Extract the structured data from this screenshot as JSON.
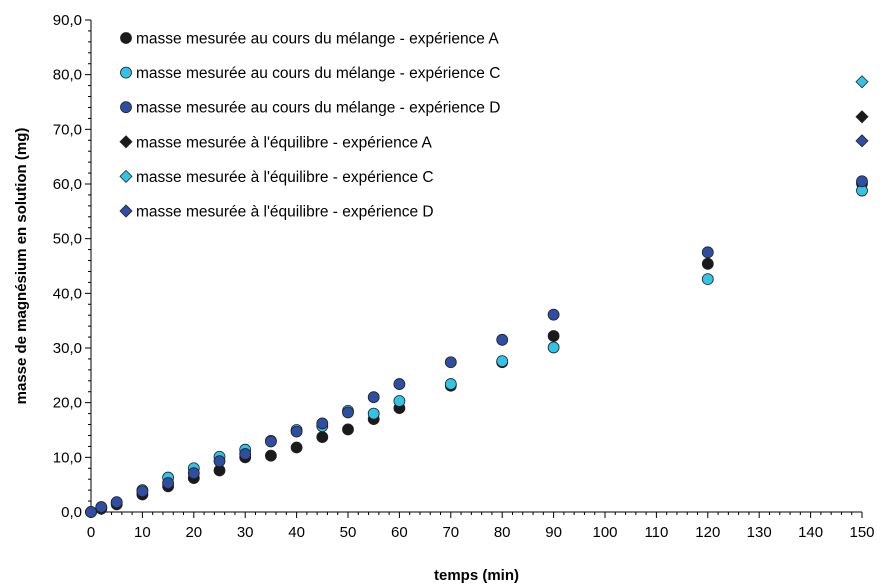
{
  "chart_data": {
    "type": "scatter",
    "title": "",
    "xlabel": "temps (min)",
    "ylabel": "masse de magnésium en solution (mg)",
    "xlim": [
      0,
      150
    ],
    "ylim": [
      0,
      90
    ],
    "x_ticks": [
      "0",
      "10",
      "20",
      "30",
      "40",
      "50",
      "60",
      "70",
      "80",
      "90",
      "100",
      "110",
      "120",
      "130",
      "140",
      "150"
    ],
    "y_ticks": [
      "0,0",
      "10,0",
      "20,0",
      "30,0",
      "40,0",
      "50,0",
      "60,0",
      "70,0",
      "80,0",
      "90,0"
    ],
    "grid": false,
    "legend_position": "top-left",
    "series": [
      {
        "name": "masse mesurée au cours du mélange - expérience A",
        "marker": "circle",
        "color": "#1a1a1a",
        "points": [
          [
            0,
            0
          ],
          [
            2,
            0.6
          ],
          [
            5,
            1.4
          ],
          [
            10,
            3.2
          ],
          [
            15,
            4.7
          ],
          [
            20,
            6.2
          ],
          [
            25,
            7.6
          ],
          [
            30,
            10
          ],
          [
            35,
            10.3
          ],
          [
            40,
            11.8
          ],
          [
            45,
            13.7
          ],
          [
            50,
            15.1
          ],
          [
            55,
            17
          ],
          [
            60,
            19
          ],
          [
            70,
            23.1
          ],
          [
            80,
            27.4
          ],
          [
            90,
            32.2
          ],
          [
            120,
            45.4
          ],
          [
            150,
            60.1
          ]
        ]
      },
      {
        "name": "masse mesurée au cours du mélange - expérience C",
        "marker": "circle",
        "color": "#33c3e6",
        "points": [
          [
            0,
            0
          ],
          [
            2,
            0.8
          ],
          [
            5,
            1.7
          ],
          [
            10,
            4
          ],
          [
            15,
            6.3
          ],
          [
            20,
            8
          ],
          [
            25,
            10.1
          ],
          [
            30,
            11.4
          ],
          [
            35,
            13
          ],
          [
            40,
            15
          ],
          [
            45,
            15.7
          ],
          [
            50,
            18.5
          ],
          [
            55,
            18
          ],
          [
            60,
            20.3
          ],
          [
            70,
            23.4
          ],
          [
            80,
            27.6
          ],
          [
            90,
            30.1
          ],
          [
            120,
            42.6
          ],
          [
            150,
            58.8
          ]
        ]
      },
      {
        "name": "masse mesurée au cours du mélange - expérience D",
        "marker": "circle",
        "color": "#2e4ea3",
        "points": [
          [
            0,
            0
          ],
          [
            2,
            0.9
          ],
          [
            5,
            1.8
          ],
          [
            10,
            3.8
          ],
          [
            15,
            5.3
          ],
          [
            20,
            7.1
          ],
          [
            25,
            9.3
          ],
          [
            30,
            10.6
          ],
          [
            35,
            12.9
          ],
          [
            40,
            14.7
          ],
          [
            45,
            16.2
          ],
          [
            50,
            18.2
          ],
          [
            55,
            21
          ],
          [
            60,
            23.4
          ],
          [
            70,
            27.4
          ],
          [
            80,
            31.5
          ],
          [
            90,
            36.1
          ],
          [
            120,
            47.5
          ],
          [
            150,
            60.5
          ]
        ]
      },
      {
        "name": "masse mesurée à l'équilibre - expérience A",
        "marker": "diamond",
        "color": "#1a1a1a",
        "points": [
          [
            150,
            72.3
          ]
        ]
      },
      {
        "name": "masse mesurée à l'équilibre - expérience C",
        "marker": "diamond",
        "color": "#33c3e6",
        "points": [
          [
            150,
            78.7
          ]
        ]
      },
      {
        "name": "masse mesurée à l'équilibre - expérience D",
        "marker": "diamond",
        "color": "#2e4ea3",
        "points": [
          [
            150,
            67.9
          ]
        ]
      }
    ]
  }
}
